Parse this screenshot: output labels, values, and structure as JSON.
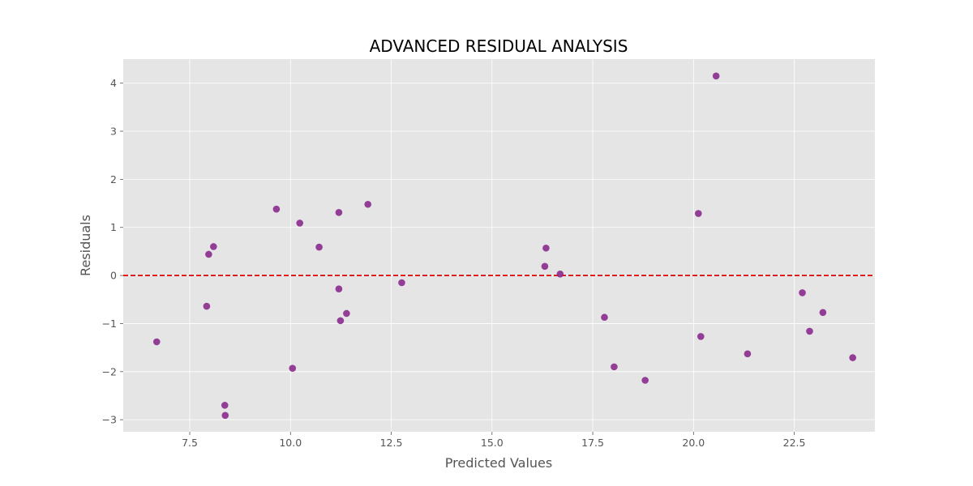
{
  "chart_data": {
    "type": "scatter",
    "title": "ADVANCED RESIDUAL ANALYSIS",
    "xlabel": "Predicted Values",
    "ylabel": "Residuals",
    "xlim": [
      5.85,
      24.5
    ],
    "ylim": [
      -3.25,
      4.5
    ],
    "xticks": [
      7.5,
      10.0,
      12.5,
      15.0,
      17.5,
      20.0,
      22.5
    ],
    "xtick_labels": [
      "7.5",
      "10.0",
      "12.5",
      "15.0",
      "17.5",
      "20.0",
      "22.5"
    ],
    "yticks": [
      -3,
      -2,
      -1,
      0,
      1,
      2,
      3,
      4
    ],
    "ytick_labels": [
      "−3",
      "−2",
      "−1",
      "0",
      "1",
      "2",
      "3",
      "4"
    ],
    "grid": true,
    "reference_line": {
      "y": 0,
      "color": "#e00000",
      "style": "dashed"
    },
    "point_color": "#8b2a8e",
    "background_color": "#e5e5e5",
    "points": [
      {
        "x": 6.68,
        "y": -1.38
      },
      {
        "x": 7.92,
        "y": -0.64
      },
      {
        "x": 7.97,
        "y": 0.44
      },
      {
        "x": 8.09,
        "y": 0.6
      },
      {
        "x": 8.37,
        "y": -2.7
      },
      {
        "x": 8.38,
        "y": -2.91
      },
      {
        "x": 9.65,
        "y": 1.38
      },
      {
        "x": 10.05,
        "y": -1.93
      },
      {
        "x": 10.23,
        "y": 1.09
      },
      {
        "x": 10.71,
        "y": 0.59
      },
      {
        "x": 11.2,
        "y": -0.28
      },
      {
        "x": 11.2,
        "y": 1.31
      },
      {
        "x": 11.24,
        "y": -0.94
      },
      {
        "x": 11.39,
        "y": -0.79
      },
      {
        "x": 11.92,
        "y": 1.48
      },
      {
        "x": 12.76,
        "y": -0.15
      },
      {
        "x": 16.31,
        "y": 0.19
      },
      {
        "x": 16.34,
        "y": 0.57
      },
      {
        "x": 16.69,
        "y": 0.03
      },
      {
        "x": 17.79,
        "y": -0.87
      },
      {
        "x": 18.03,
        "y": -1.9
      },
      {
        "x": 18.8,
        "y": -2.18
      },
      {
        "x": 20.12,
        "y": 1.29
      },
      {
        "x": 20.18,
        "y": -1.27
      },
      {
        "x": 20.56,
        "y": 4.15
      },
      {
        "x": 21.34,
        "y": -1.63
      },
      {
        "x": 22.7,
        "y": -0.36
      },
      {
        "x": 22.88,
        "y": -1.16
      },
      {
        "x": 23.21,
        "y": -0.77
      },
      {
        "x": 23.95,
        "y": -1.71
      }
    ]
  }
}
